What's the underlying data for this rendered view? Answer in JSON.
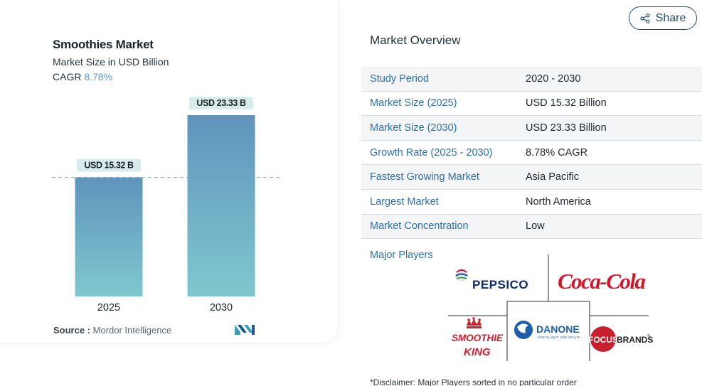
{
  "share": {
    "label": "Share"
  },
  "chart": {
    "title": "Smoothies Market",
    "subtitle": "Market Size in USD Billion",
    "cagr_label": "CAGR",
    "cagr_value": "8.78%",
    "source_label": "Source :",
    "source_value": "Mordor Intelligence"
  },
  "chart_data": {
    "type": "bar",
    "categories": [
      "2025",
      "2030"
    ],
    "values": [
      15.32,
      23.33
    ],
    "data_labels": [
      "USD 15.32 B",
      "USD 23.33 B"
    ],
    "title": "Smoothies Market",
    "subtitle": "Market Size in USD Billion",
    "xlabel": "",
    "ylabel": "",
    "ylim": [
      0,
      25
    ],
    "grid": false,
    "reference_line": 15.32,
    "colors": {
      "bar_top": "#5f94bd",
      "bar_bottom": "#80c7ce",
      "label_bg": "#d8ecec"
    }
  },
  "overview": {
    "title": "Market Overview",
    "rows": [
      {
        "key": "Study Period",
        "value": "2020 - 2030"
      },
      {
        "key": "Market Size (2025)",
        "value": "USD 15.32 Billion"
      },
      {
        "key": "Market Size (2030)",
        "value": "USD 23.33 Billion"
      },
      {
        "key": "Growth Rate (2025 - 2030)",
        "value": "8.78% CAGR"
      },
      {
        "key": "Fastest Growing Market",
        "value": "Asia Pacific"
      },
      {
        "key": "Largest Market",
        "value": "North America"
      },
      {
        "key": "Market Concentration",
        "value": "Low"
      }
    ]
  },
  "players": {
    "label": "Major Players",
    "logos": [
      "PEPSICO",
      "Coca-Cola",
      "DANONE",
      "ONE PLANET. ONE HEALTH",
      "SMOOTHIE",
      "KING",
      "FOCUS",
      "BRANDS"
    ]
  },
  "disclaimer": "*Disclaimer: Major Players sorted in no particular order",
  "colors": {
    "accent": "#2f6fa8",
    "share": "#1e4f6f",
    "cagr": "#5a9bc2"
  }
}
